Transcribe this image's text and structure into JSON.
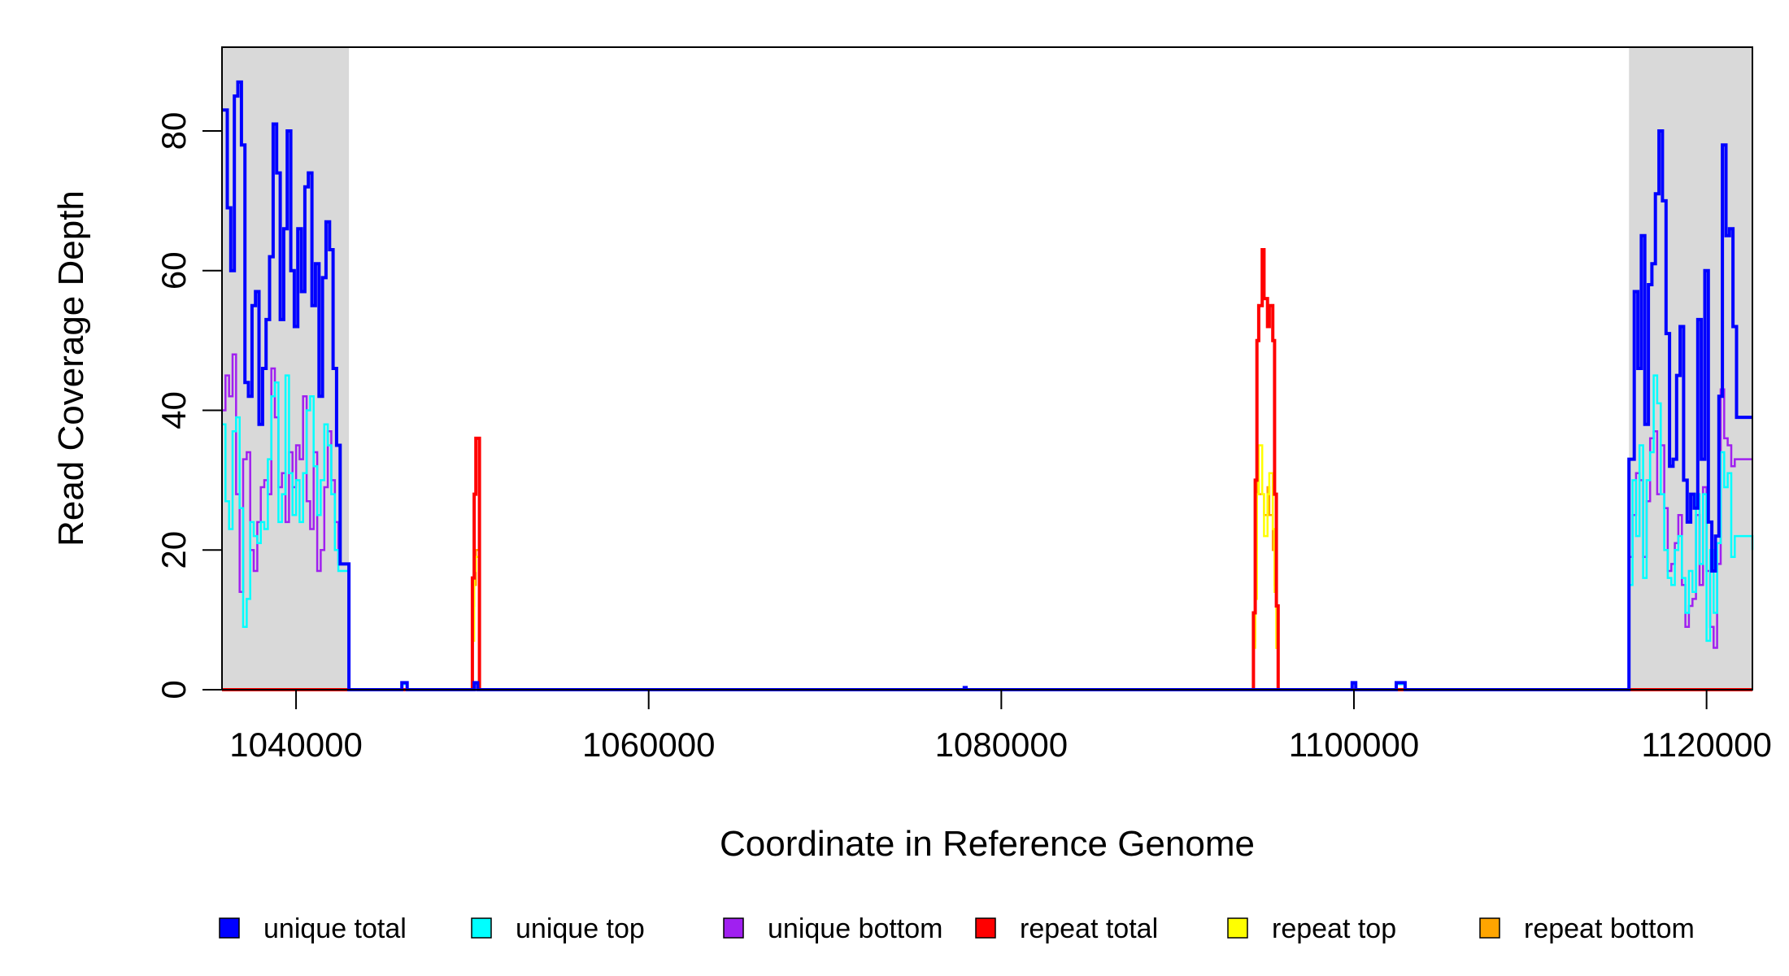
{
  "chart_data": {
    "type": "line",
    "title": "",
    "xlabel": "Coordinate in Reference Genome",
    "ylabel": "Read Coverage Depth",
    "xlim": [
      1035800,
      1122600
    ],
    "ylim": [
      0,
      92
    ],
    "xticks": [
      1040000,
      1060000,
      1080000,
      1100000,
      1120000
    ],
    "xtick_labels": [
      "1040000",
      "1060000",
      "1080000",
      "1100000",
      "1120000"
    ],
    "yticks": [
      0,
      20,
      40,
      60,
      80
    ],
    "ytick_labels": [
      "0",
      "20",
      "40",
      "60",
      "80"
    ],
    "shaded_regions": [
      [
        1035800,
        1043000
      ],
      [
        1115600,
        1122600
      ]
    ],
    "grid": false,
    "legend_position": "bottom",
    "series": [
      {
        "name": "unique total",
        "color": "#0000FF",
        "points": [
          [
            1035800,
            83
          ],
          [
            1036100,
            69
          ],
          [
            1036300,
            60
          ],
          [
            1036500,
            85
          ],
          [
            1036700,
            87
          ],
          [
            1036900,
            78
          ],
          [
            1037100,
            44
          ],
          [
            1037300,
            42
          ],
          [
            1037500,
            55
          ],
          [
            1037700,
            57
          ],
          [
            1037900,
            38
          ],
          [
            1038100,
            46
          ],
          [
            1038300,
            53
          ],
          [
            1038500,
            62
          ],
          [
            1038700,
            81
          ],
          [
            1038900,
            74
          ],
          [
            1039100,
            53
          ],
          [
            1039300,
            66
          ],
          [
            1039500,
            80
          ],
          [
            1039700,
            60
          ],
          [
            1039900,
            52
          ],
          [
            1040100,
            66
          ],
          [
            1040300,
            57
          ],
          [
            1040500,
            72
          ],
          [
            1040700,
            74
          ],
          [
            1040900,
            55
          ],
          [
            1041100,
            61
          ],
          [
            1041300,
            42
          ],
          [
            1041500,
            59
          ],
          [
            1041700,
            67
          ],
          [
            1041900,
            63
          ],
          [
            1042100,
            46
          ],
          [
            1042300,
            35
          ],
          [
            1042500,
            18
          ],
          [
            1043000,
            0
          ],
          [
            1046000,
            1
          ],
          [
            1046300,
            0
          ],
          [
            1050100,
            1
          ],
          [
            1050300,
            0
          ],
          [
            1077800,
            0
          ],
          [
            1077900,
            0.3
          ],
          [
            1078000,
            0
          ],
          [
            1099900,
            1
          ],
          [
            1100100,
            0
          ],
          [
            1102400,
            1
          ],
          [
            1102900,
            0
          ],
          [
            1115600,
            33
          ],
          [
            1115900,
            57
          ],
          [
            1116100,
            46
          ],
          [
            1116300,
            65
          ],
          [
            1116500,
            38
          ],
          [
            1116700,
            58
          ],
          [
            1116900,
            61
          ],
          [
            1117100,
            71
          ],
          [
            1117300,
            80
          ],
          [
            1117500,
            70
          ],
          [
            1117700,
            51
          ],
          [
            1117900,
            32
          ],
          [
            1118100,
            33
          ],
          [
            1118300,
            45
          ],
          [
            1118500,
            52
          ],
          [
            1118700,
            30
          ],
          [
            1118900,
            24
          ],
          [
            1119100,
            28
          ],
          [
            1119300,
            26
          ],
          [
            1119500,
            53
          ],
          [
            1119700,
            33
          ],
          [
            1119900,
            60
          ],
          [
            1120100,
            24
          ],
          [
            1120300,
            17
          ],
          [
            1120500,
            22
          ],
          [
            1120700,
            42
          ],
          [
            1120900,
            78
          ],
          [
            1121100,
            65
          ],
          [
            1121300,
            66
          ],
          [
            1121500,
            52
          ],
          [
            1121700,
            39
          ],
          [
            1122600,
            39
          ]
        ]
      },
      {
        "name": "unique top",
        "color": "#00FFFF",
        "points": [
          [
            1035800,
            38
          ],
          [
            1036000,
            27
          ],
          [
            1036200,
            23
          ],
          [
            1036400,
            37
          ],
          [
            1036600,
            39
          ],
          [
            1036800,
            26
          ],
          [
            1037000,
            9
          ],
          [
            1037200,
            13
          ],
          [
            1037400,
            24
          ],
          [
            1037600,
            22
          ],
          [
            1037800,
            21
          ],
          [
            1038000,
            24
          ],
          [
            1038200,
            23
          ],
          [
            1038400,
            33
          ],
          [
            1038600,
            42
          ],
          [
            1038800,
            44
          ],
          [
            1039000,
            24
          ],
          [
            1039200,
            28
          ],
          [
            1039400,
            45
          ],
          [
            1039600,
            31
          ],
          [
            1039800,
            25
          ],
          [
            1040000,
            30
          ],
          [
            1040200,
            24
          ],
          [
            1040400,
            31
          ],
          [
            1040600,
            40
          ],
          [
            1040800,
            42
          ],
          [
            1041000,
            32
          ],
          [
            1041200,
            25
          ],
          [
            1041400,
            30
          ],
          [
            1041600,
            38
          ],
          [
            1041800,
            35
          ],
          [
            1042000,
            28
          ],
          [
            1042200,
            20
          ],
          [
            1042400,
            17
          ],
          [
            1043000,
            0
          ],
          [
            1046000,
            0.8
          ],
          [
            1046300,
            0
          ],
          [
            1050100,
            0.8
          ],
          [
            1050300,
            0
          ],
          [
            1099900,
            0.8
          ],
          [
            1100100,
            0
          ],
          [
            1102400,
            0.8
          ],
          [
            1102900,
            0
          ],
          [
            1115600,
            15
          ],
          [
            1115800,
            30
          ],
          [
            1116000,
            22
          ],
          [
            1116200,
            35
          ],
          [
            1116400,
            16
          ],
          [
            1116600,
            30
          ],
          [
            1116800,
            34
          ],
          [
            1117000,
            45
          ],
          [
            1117200,
            41
          ],
          [
            1117400,
            28
          ],
          [
            1117600,
            20
          ],
          [
            1117800,
            16
          ],
          [
            1118000,
            15
          ],
          [
            1118200,
            20
          ],
          [
            1118400,
            22
          ],
          [
            1118600,
            16
          ],
          [
            1118800,
            11
          ],
          [
            1119000,
            17
          ],
          [
            1119200,
            14
          ],
          [
            1119400,
            28
          ],
          [
            1119600,
            18
          ],
          [
            1119800,
            28
          ],
          [
            1120000,
            7
          ],
          [
            1120200,
            20
          ],
          [
            1120400,
            11
          ],
          [
            1120600,
            21
          ],
          [
            1120800,
            34
          ],
          [
            1121000,
            29
          ],
          [
            1121200,
            31
          ],
          [
            1121400,
            19
          ],
          [
            1121600,
            22
          ],
          [
            1122600,
            20
          ]
        ]
      },
      {
        "name": "unique bottom",
        "color": "#A020F0",
        "points": [
          [
            1035800,
            40
          ],
          [
            1036000,
            45
          ],
          [
            1036200,
            42
          ],
          [
            1036400,
            48
          ],
          [
            1036600,
            28
          ],
          [
            1036800,
            14
          ],
          [
            1037000,
            33
          ],
          [
            1037200,
            34
          ],
          [
            1037400,
            20
          ],
          [
            1037600,
            17
          ],
          [
            1037800,
            24
          ],
          [
            1038000,
            29
          ],
          [
            1038200,
            30
          ],
          [
            1038400,
            28
          ],
          [
            1038600,
            46
          ],
          [
            1038800,
            39
          ],
          [
            1039000,
            29
          ],
          [
            1039200,
            31
          ],
          [
            1039400,
            24
          ],
          [
            1039600,
            34
          ],
          [
            1039800,
            29
          ],
          [
            1040000,
            35
          ],
          [
            1040200,
            33
          ],
          [
            1040400,
            42
          ],
          [
            1040600,
            27
          ],
          [
            1040800,
            23
          ],
          [
            1041000,
            34
          ],
          [
            1041200,
            17
          ],
          [
            1041400,
            20
          ],
          [
            1041600,
            29
          ],
          [
            1041800,
            37
          ],
          [
            1042000,
            30
          ],
          [
            1042200,
            24
          ],
          [
            1042400,
            18
          ],
          [
            1043000,
            0
          ],
          [
            1102400,
            0.8
          ],
          [
            1102900,
            0
          ],
          [
            1115600,
            19
          ],
          [
            1115800,
            25
          ],
          [
            1116000,
            31
          ],
          [
            1116200,
            30
          ],
          [
            1116400,
            19
          ],
          [
            1116600,
            27
          ],
          [
            1116800,
            36
          ],
          [
            1117000,
            37
          ],
          [
            1117200,
            28
          ],
          [
            1117400,
            35
          ],
          [
            1117600,
            26
          ],
          [
            1117800,
            17
          ],
          [
            1118000,
            18
          ],
          [
            1118200,
            21
          ],
          [
            1118400,
            25
          ],
          [
            1118600,
            15
          ],
          [
            1118800,
            9
          ],
          [
            1119000,
            12
          ],
          [
            1119200,
            13
          ],
          [
            1119400,
            25
          ],
          [
            1119600,
            15
          ],
          [
            1119800,
            29
          ],
          [
            1120000,
            17
          ],
          [
            1120200,
            9
          ],
          [
            1120400,
            6
          ],
          [
            1120600,
            18
          ],
          [
            1120800,
            43
          ],
          [
            1121000,
            36
          ],
          [
            1121200,
            35
          ],
          [
            1121400,
            32
          ],
          [
            1121600,
            33
          ],
          [
            1122600,
            33
          ]
        ]
      },
      {
        "name": "repeat total",
        "color": "#FF0000",
        "points": [
          [
            1035800,
            0
          ],
          [
            1049900,
            0
          ],
          [
            1050000,
            16
          ],
          [
            1050100,
            28
          ],
          [
            1050200,
            36
          ],
          [
            1050400,
            0
          ],
          [
            1094200,
            0
          ],
          [
            1094300,
            11
          ],
          [
            1094400,
            30
          ],
          [
            1094500,
            50
          ],
          [
            1094600,
            55
          ],
          [
            1094800,
            63
          ],
          [
            1094900,
            56
          ],
          [
            1095100,
            52
          ],
          [
            1095200,
            55
          ],
          [
            1095400,
            50
          ],
          [
            1095500,
            28
          ],
          [
            1095600,
            12
          ],
          [
            1095700,
            0
          ],
          [
            1122600,
            0
          ]
        ]
      },
      {
        "name": "repeat top",
        "color": "#FFFF00",
        "points": [
          [
            1035800,
            0
          ],
          [
            1049900,
            0
          ],
          [
            1050000,
            7
          ],
          [
            1050100,
            17
          ],
          [
            1050200,
            19
          ],
          [
            1050400,
            0
          ],
          [
            1094200,
            0
          ],
          [
            1094300,
            6
          ],
          [
            1094400,
            13
          ],
          [
            1094500,
            28
          ],
          [
            1094600,
            35
          ],
          [
            1094800,
            28
          ],
          [
            1094900,
            22
          ],
          [
            1095100,
            28
          ],
          [
            1095200,
            31
          ],
          [
            1095400,
            23
          ],
          [
            1095500,
            14
          ],
          [
            1095600,
            6
          ],
          [
            1095700,
            0
          ],
          [
            1122600,
            0
          ]
        ]
      },
      {
        "name": "repeat bottom",
        "color": "#FFA500",
        "points": [
          [
            1035800,
            0
          ],
          [
            1049900,
            0
          ],
          [
            1050000,
            12
          ],
          [
            1050100,
            15
          ],
          [
            1050200,
            20
          ],
          [
            1050400,
            0
          ],
          [
            1094200,
            0
          ],
          [
            1094300,
            7
          ],
          [
            1094400,
            20
          ],
          [
            1094500,
            30
          ],
          [
            1094600,
            28
          ],
          [
            1094800,
            28
          ],
          [
            1094900,
            25
          ],
          [
            1095100,
            29
          ],
          [
            1095200,
            25
          ],
          [
            1095400,
            20
          ],
          [
            1095500,
            15
          ],
          [
            1095600,
            6
          ],
          [
            1095700,
            0
          ],
          [
            1122600,
            0
          ]
        ]
      }
    ]
  }
}
